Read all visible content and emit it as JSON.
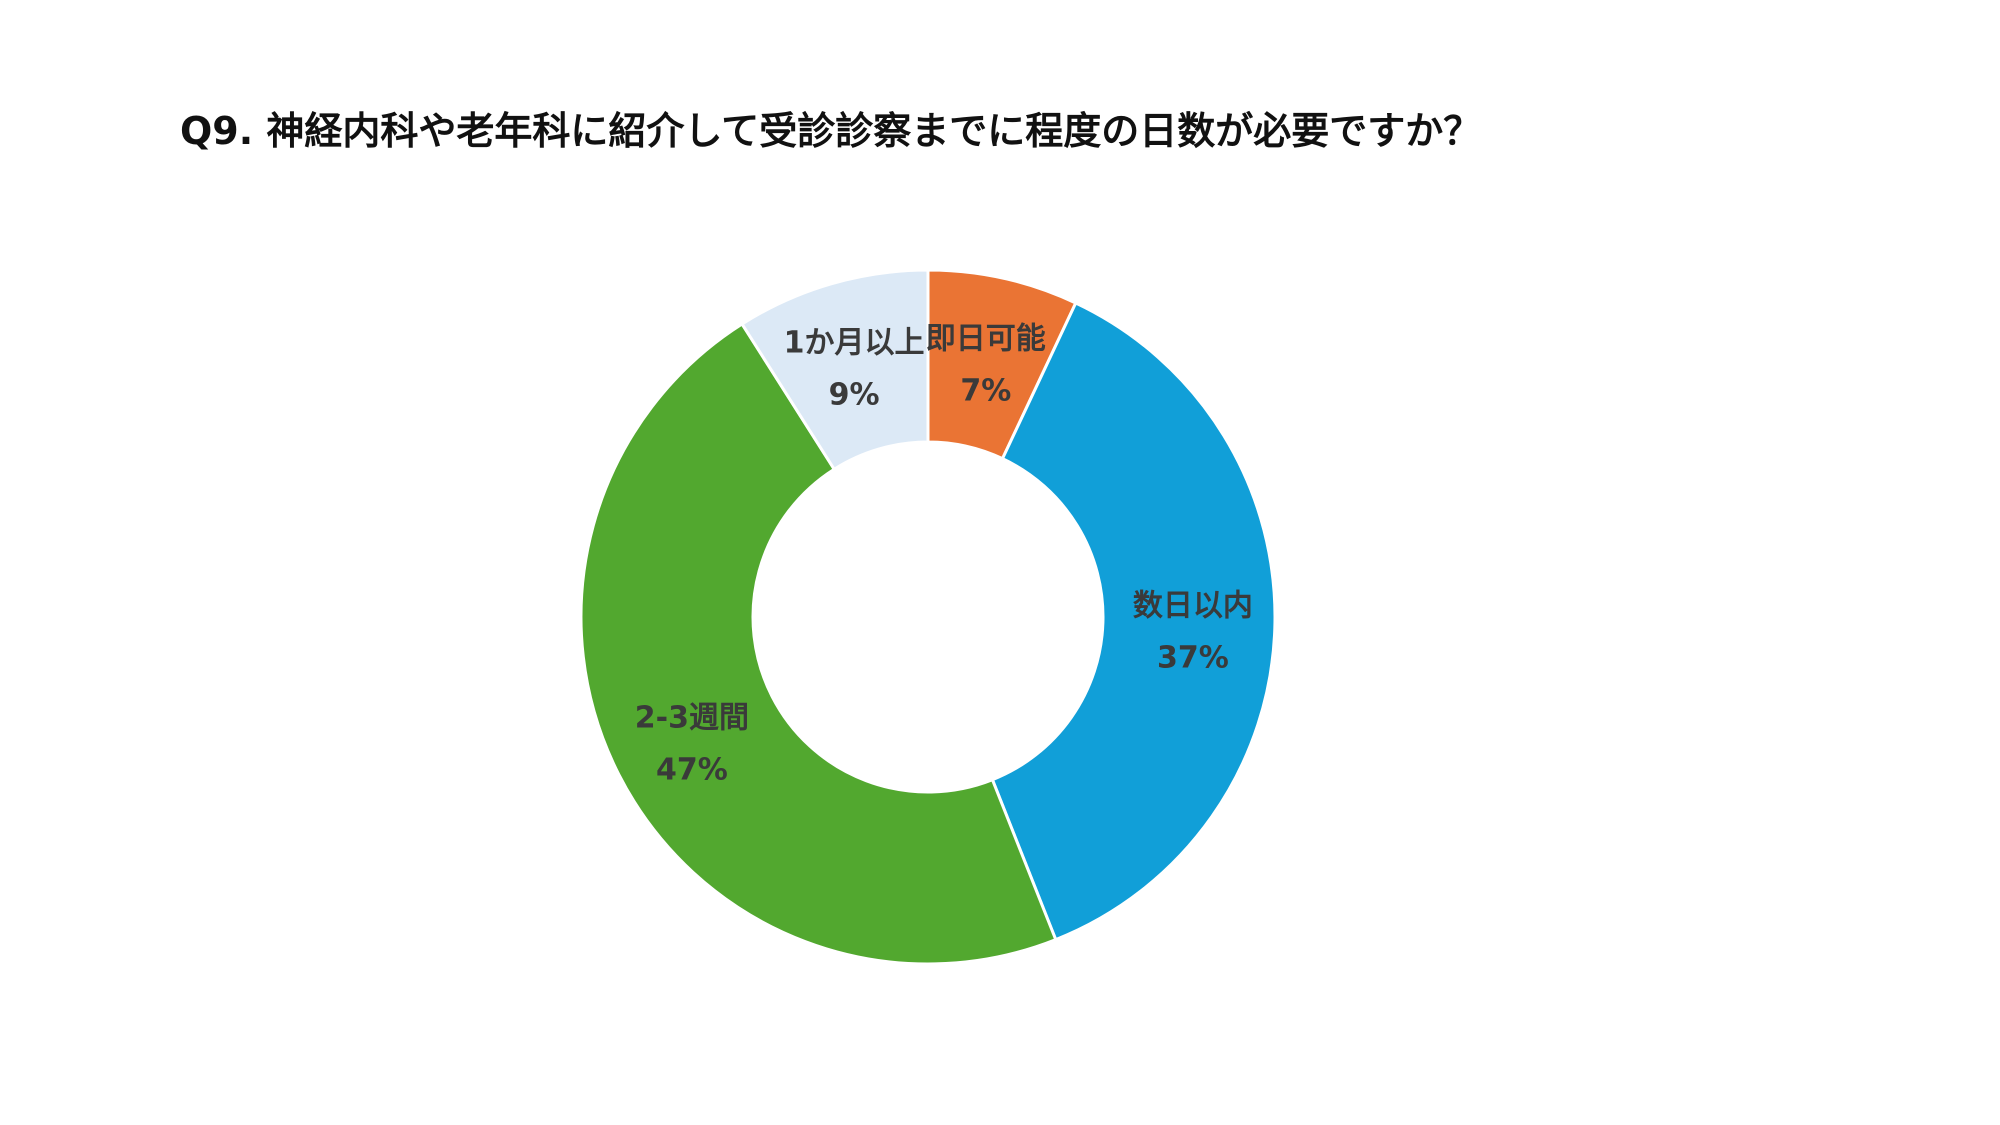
{
  "chart_data": {
    "type": "pie",
    "title": "Q9. 神経内科や老年科に紹介して受診診察までに程度の日数が必要ですか？",
    "donut": true,
    "unit": "%",
    "slices": [
      {
        "label": "即日可能",
        "value": 7,
        "display": "7%",
        "color": "#EA7434"
      },
      {
        "label": "数日以内",
        "value": 37,
        "display": "37%",
        "color": "#119FD8"
      },
      {
        "label": "2-3週間",
        "value": 47,
        "display": "47%",
        "color": "#52A82F"
      },
      {
        "label": "1か月以上",
        "value": 9,
        "display": "9%",
        "color": "#DCE9F6"
      }
    ]
  }
}
